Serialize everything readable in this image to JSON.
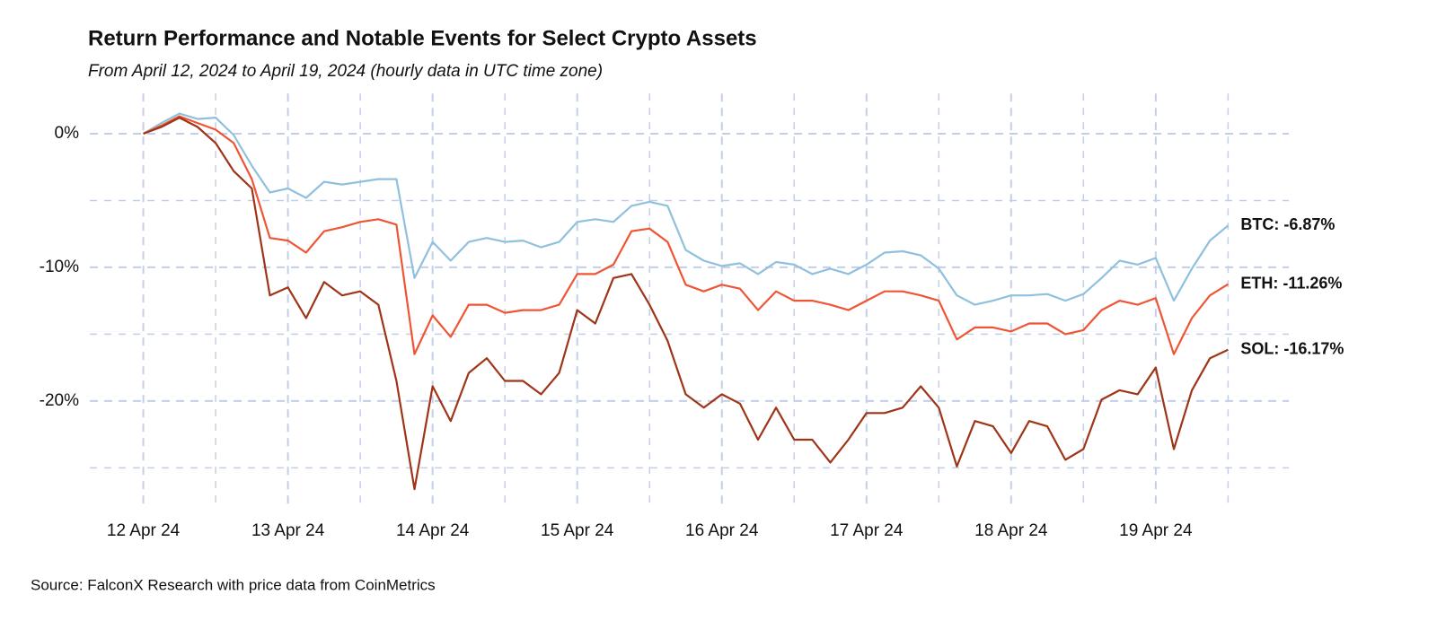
{
  "chart_data": {
    "type": "line",
    "title": "Return Performance and Notable Events for Select Crypto Assets",
    "subtitle": "From April 12, 2024 to April 19, 2024 (hourly data in UTC time zone)",
    "source": "Source: FalconX Research with price data from CoinMetrics",
    "x": [
      0,
      0.125,
      0.25,
      0.375,
      0.5,
      0.625,
      0.75,
      0.875,
      1,
      1.125,
      1.25,
      1.375,
      1.5,
      1.625,
      1.75,
      1.875,
      2,
      2.125,
      2.25,
      2.375,
      2.5,
      2.625,
      2.75,
      2.875,
      3,
      3.125,
      3.25,
      3.375,
      3.5,
      3.625,
      3.75,
      3.875,
      4,
      4.125,
      4.25,
      4.375,
      4.5,
      4.625,
      4.75,
      4.875,
      5,
      5.125,
      5.25,
      5.375,
      5.5,
      5.625,
      5.75,
      5.875,
      6,
      6.125,
      6.25,
      6.375,
      6.5,
      6.625,
      6.75,
      6.875,
      7,
      7.125,
      7.25,
      7.375,
      7.5
    ],
    "series": [
      {
        "name": "BTC: -6.87%",
        "color": "#8fc0dd",
        "values": [
          0,
          0.8,
          1.5,
          1.1,
          1.2,
          -0.1,
          -2.4,
          -4.4,
          -4.1,
          -4.8,
          -3.6,
          -3.8,
          -3.6,
          -3.4,
          -3.4,
          -10.8,
          -8.1,
          -9.5,
          -8.1,
          -7.8,
          -8.1,
          -8.0,
          -8.5,
          -8.1,
          -6.6,
          -6.4,
          -6.6,
          -5.4,
          -5.1,
          -5.4,
          -8.7,
          -9.5,
          -9.9,
          -9.7,
          -10.5,
          -9.6,
          -9.8,
          -10.5,
          -10.1,
          -10.5,
          -9.8,
          -8.9,
          -8.8,
          -9.1,
          -10.1,
          -12.1,
          -12.8,
          -12.5,
          -12.1,
          -12.1,
          -12.0,
          -12.5,
          -12.0,
          -10.8,
          -9.5,
          -9.8,
          -9.3,
          -12.5,
          -10.1,
          -8.0,
          -6.87
        ]
      },
      {
        "name": "ETH: -11.26%",
        "color": "#ef5535",
        "values": [
          0,
          0.6,
          1.3,
          0.8,
          0.3,
          -0.7,
          -3.4,
          -7.8,
          -8.0,
          -8.9,
          -7.3,
          -7.0,
          -6.6,
          -6.4,
          -6.8,
          -16.5,
          -13.6,
          -15.2,
          -12.8,
          -12.8,
          -13.4,
          -13.2,
          -13.2,
          -12.8,
          -10.5,
          -10.5,
          -9.8,
          -7.3,
          -7.1,
          -8.1,
          -11.3,
          -11.8,
          -11.3,
          -11.6,
          -13.2,
          -11.8,
          -12.5,
          -12.5,
          -12.8,
          -13.2,
          -12.5,
          -11.8,
          -11.8,
          -12.1,
          -12.5,
          -15.4,
          -14.5,
          -14.5,
          -14.8,
          -14.2,
          -14.2,
          -15.0,
          -14.7,
          -13.2,
          -12.5,
          -12.8,
          -12.3,
          -16.5,
          -13.8,
          -12.1,
          -11.26
        ]
      },
      {
        "name": "SOL: -16.17%",
        "color": "#9e3418",
        "values": [
          0,
          0.5,
          1.2,
          0.5,
          -0.7,
          -2.8,
          -4.1,
          -12.1,
          -11.5,
          -13.8,
          -11.1,
          -12.1,
          -11.8,
          -12.8,
          -18.5,
          -26.6,
          -18.9,
          -21.5,
          -17.9,
          -16.8,
          -18.5,
          -18.5,
          -19.5,
          -17.9,
          -13.2,
          -14.2,
          -10.8,
          -10.5,
          -12.8,
          -15.5,
          -19.5,
          -20.5,
          -19.5,
          -20.2,
          -22.9,
          -20.5,
          -22.9,
          -22.9,
          -24.6,
          -22.9,
          -20.9,
          -20.9,
          -20.5,
          -18.9,
          -20.5,
          -24.9,
          -21.5,
          -21.9,
          -23.9,
          -21.5,
          -21.9,
          -24.4,
          -23.6,
          -19.9,
          -19.2,
          -19.5,
          -17.5,
          -23.6,
          -19.2,
          -16.8,
          -16.17
        ]
      }
    ],
    "xlim": [
      -0.37,
      7.92
    ],
    "ylim": [
      -28,
      3
    ],
    "xticks": [
      {
        "value": 0,
        "label": "12 Apr 24"
      },
      {
        "value": 1,
        "label": "13 Apr 24"
      },
      {
        "value": 2,
        "label": "14 Apr 24"
      },
      {
        "value": 3,
        "label": "15 Apr 24"
      },
      {
        "value": 4,
        "label": "16 Apr 24"
      },
      {
        "value": 5,
        "label": "17 Apr 24"
      },
      {
        "value": 6,
        "label": "18 Apr 24"
      },
      {
        "value": 7,
        "label": "19 Apr 24"
      }
    ],
    "minor_xticks": [
      0.5,
      1.5,
      2.5,
      3.5,
      4.5,
      5.5,
      6.5,
      7.5
    ],
    "yticks": [
      {
        "value": 0,
        "label": "0%"
      },
      {
        "value": -10,
        "label": "-10%"
      },
      {
        "value": -20,
        "label": "-20%"
      }
    ],
    "minor_yticks": [
      -5,
      -15,
      -25
    ],
    "grid": true
  }
}
